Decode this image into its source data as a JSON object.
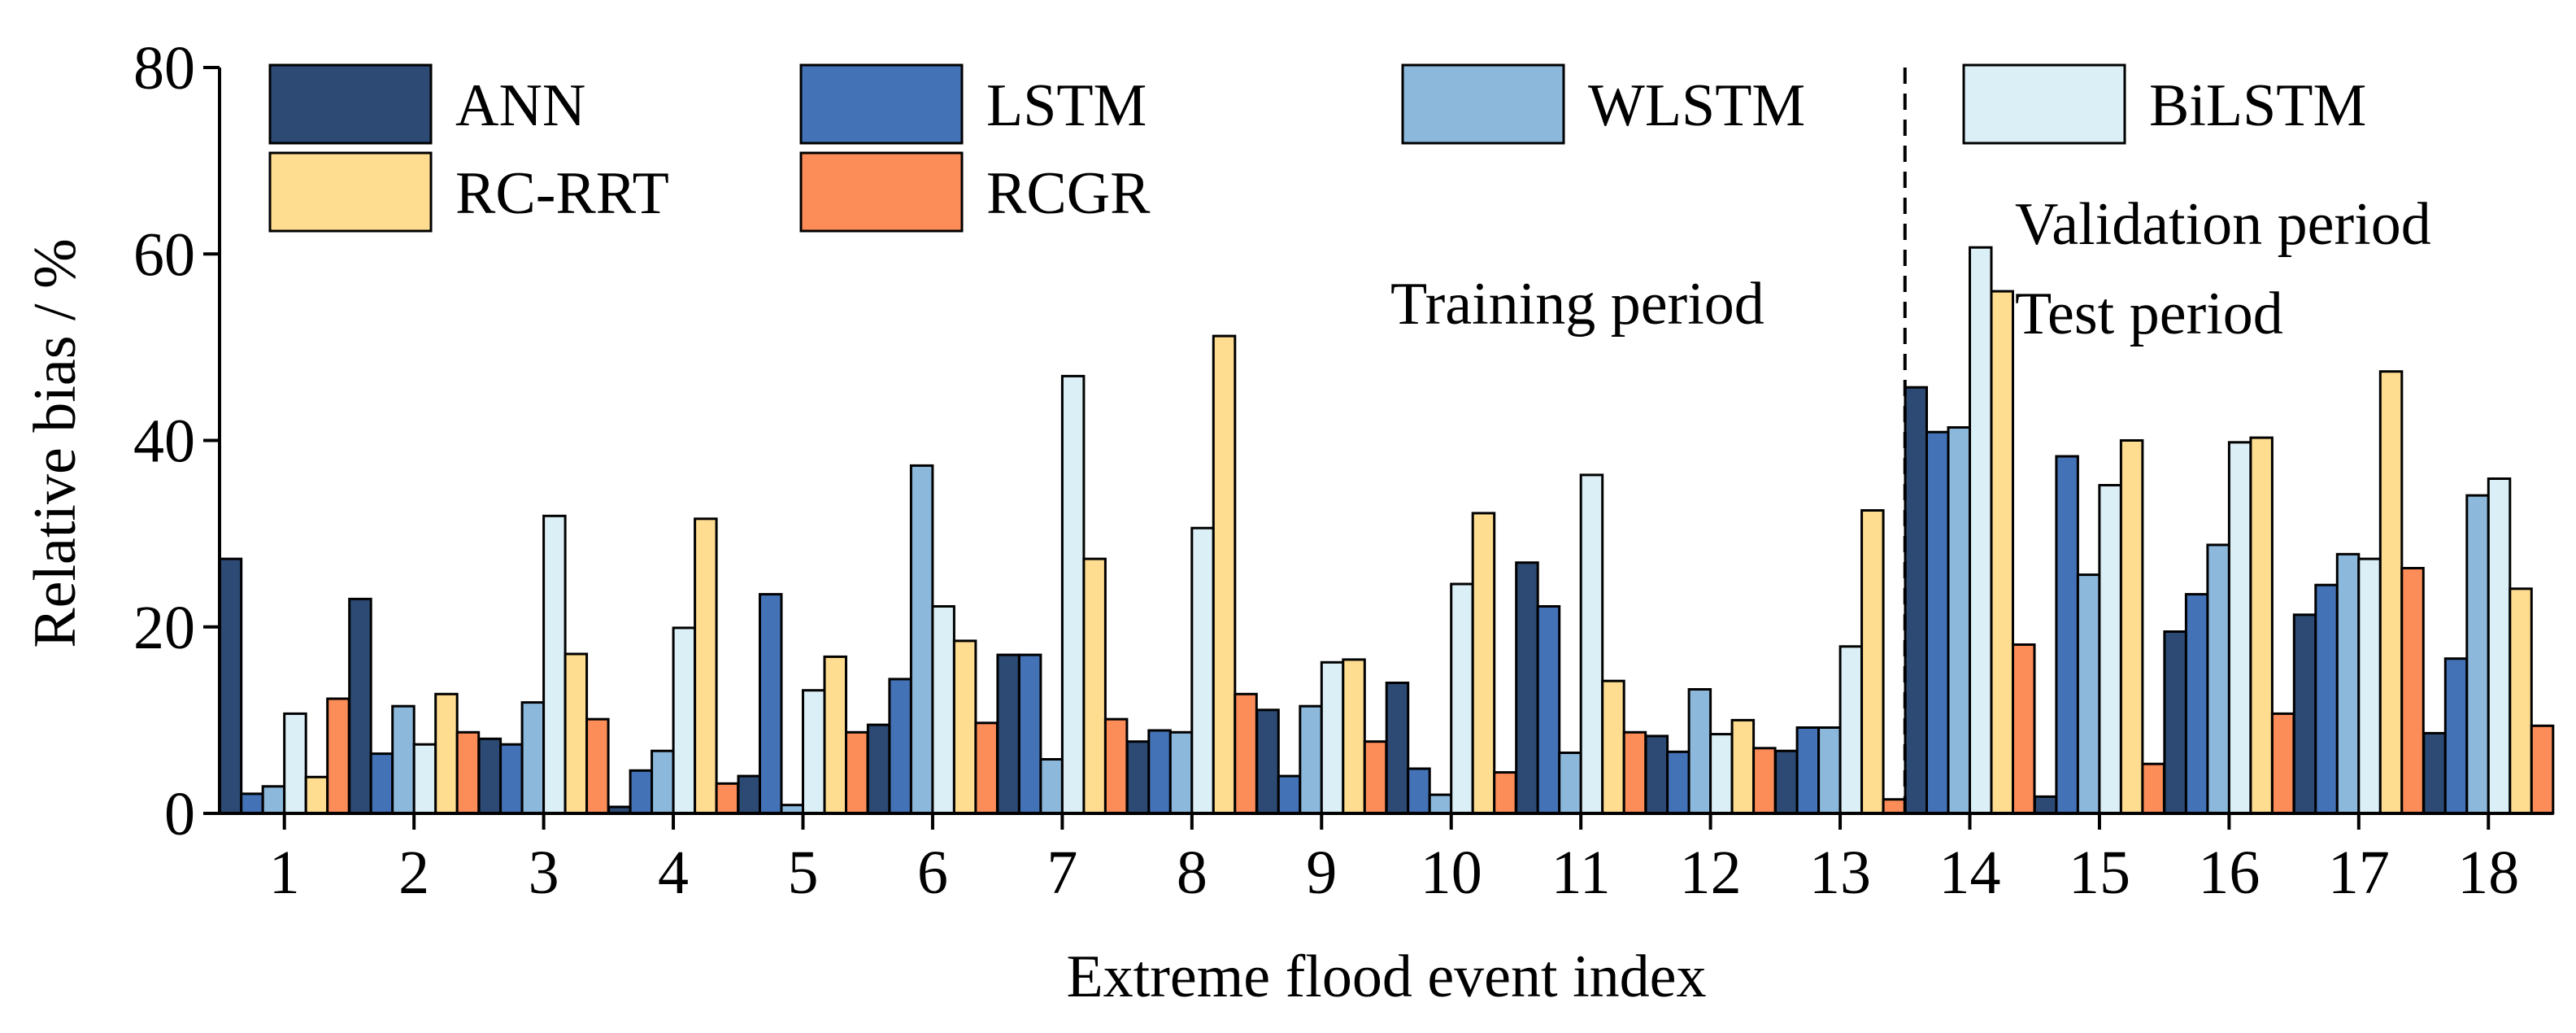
{
  "chart_data": {
    "type": "bar",
    "ylabel": "Relative bias / %",
    "xlabel": "Extreme flood event index",
    "ylim": [
      0,
      80
    ],
    "yticks": [
      0,
      20,
      40,
      60,
      80
    ],
    "categories": [
      "1",
      "2",
      "3",
      "4",
      "5",
      "6",
      "7",
      "8",
      "9",
      "10",
      "11",
      "12",
      "13",
      "14",
      "15",
      "16",
      "17",
      "18"
    ],
    "series": [
      {
        "name": "ANN",
        "color": "#2c4a73",
        "values": [
          27.3,
          23.0,
          8.0,
          0.7,
          4.0,
          9.5,
          17.0,
          7.7,
          11.1,
          14.0,
          26.9,
          8.3,
          6.7,
          45.7,
          1.8,
          19.5,
          21.3,
          8.6
        ]
      },
      {
        "name": "LSTM",
        "color": "#4472b6",
        "values": [
          2.1,
          6.4,
          7.4,
          4.6,
          23.5,
          14.4,
          17.0,
          8.9,
          4.0,
          4.8,
          22.2,
          6.6,
          9.2,
          40.9,
          38.3,
          23.5,
          24.5,
          16.6
        ]
      },
      {
        "name": "WLSTM",
        "color": "#8cb8dc",
        "values": [
          2.9,
          11.5,
          11.9,
          6.7,
          0.9,
          37.3,
          5.8,
          8.7,
          11.5,
          2.0,
          6.5,
          13.3,
          9.2,
          41.4,
          25.6,
          28.8,
          27.8,
          34.1
        ]
      },
      {
        "name": "BiLSTM",
        "color": "#dbeff7",
        "values": [
          10.7,
          7.4,
          31.9,
          19.9,
          13.2,
          22.2,
          46.9,
          30.6,
          16.2,
          24.6,
          36.3,
          8.5,
          17.9,
          60.7,
          35.2,
          39.8,
          27.3,
          35.9
        ]
      },
      {
        "name": "RC-RRT",
        "color": "#fedd90",
        "values": [
          3.9,
          12.8,
          17.1,
          31.6,
          16.8,
          18.5,
          27.3,
          51.2,
          16.5,
          32.2,
          14.2,
          10.0,
          32.5,
          56.0,
          40.0,
          40.3,
          47.4,
          24.1
        ]
      },
      {
        "name": "RCGR",
        "color": "#fd8d58",
        "values": [
          12.3,
          8.7,
          10.1,
          3.2,
          8.7,
          9.7,
          10.1,
          12.8,
          7.7,
          4.4,
          8.7,
          7.0,
          1.5,
          18.1,
          5.3,
          10.7,
          26.3,
          9.4
        ]
      }
    ],
    "annotations": {
      "training": "Training period",
      "validation": "Validation period",
      "test": "Test period"
    },
    "divider_after_category": 13,
    "legend_position": "top-left, inside plot"
  }
}
